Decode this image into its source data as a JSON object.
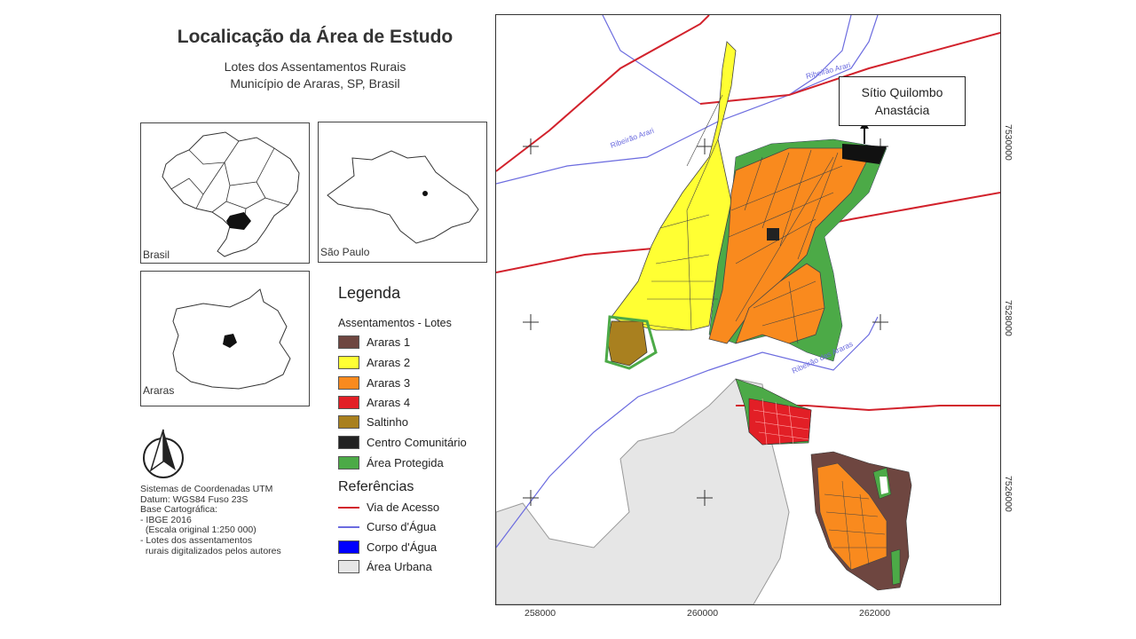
{
  "title": "Localicação da Área de Estudo",
  "subtitle_line1": "Lotes dos Assentamentos Rurais",
  "subtitle_line2": "Município de Araras, SP, Brasil",
  "insets": {
    "brasil": "Brasil",
    "sao_paulo": "São Paulo",
    "araras": "Araras"
  },
  "legend": {
    "title": "Legenda",
    "assentamentos_title": "Assentamentos - Lotes",
    "items": [
      {
        "label": "Araras 1",
        "color": "#6e4640"
      },
      {
        "label": "Araras 2",
        "color": "#ffff33"
      },
      {
        "label": "Araras 3",
        "color": "#f98a1e"
      },
      {
        "label": "Araras 4",
        "color": "#e21f26"
      },
      {
        "label": "Saltinho",
        "color": "#a9801f"
      },
      {
        "label": "Centro Comunitário",
        "color": "#222222"
      },
      {
        "label": "Área Protegida",
        "color": "#4caa47"
      }
    ],
    "references_title": "Referências",
    "references": [
      {
        "label": "Via de Acesso",
        "color": "#d2222c",
        "kind": "line"
      },
      {
        "label": "Curso d'Água",
        "color": "#6b6bdf",
        "kind": "line"
      },
      {
        "label": "Corpo d'Água",
        "color": "#0000ff",
        "kind": "fill"
      },
      {
        "label": "Área Urbana",
        "color": "#e6e6e6",
        "kind": "fill"
      }
    ]
  },
  "coordinates_note": {
    "line1": "Sistemas de Coordenadas UTM",
    "line2": "Datum: WGS84 Fuso 23S",
    "line3": "Base Cartográfica:",
    "line4": "- IBGE 2016",
    "line5": "  (Escala original 1:250 000)",
    "line6": "- Lotes dos assentamentos",
    "line7": "  rurais digitalizados pelos autores"
  },
  "map": {
    "callout_line1": "Sítio Quilombo",
    "callout_line2": "Anastácia",
    "river_label_1": "Ribeirão Arari",
    "river_label_2": "Ribeirão Arari",
    "river_label_3": "Ribeirão das Araras",
    "x_ticks": [
      "258000",
      "260000",
      "262000"
    ],
    "y_ticks": [
      "7530000",
      "7528000",
      "7526000"
    ]
  }
}
